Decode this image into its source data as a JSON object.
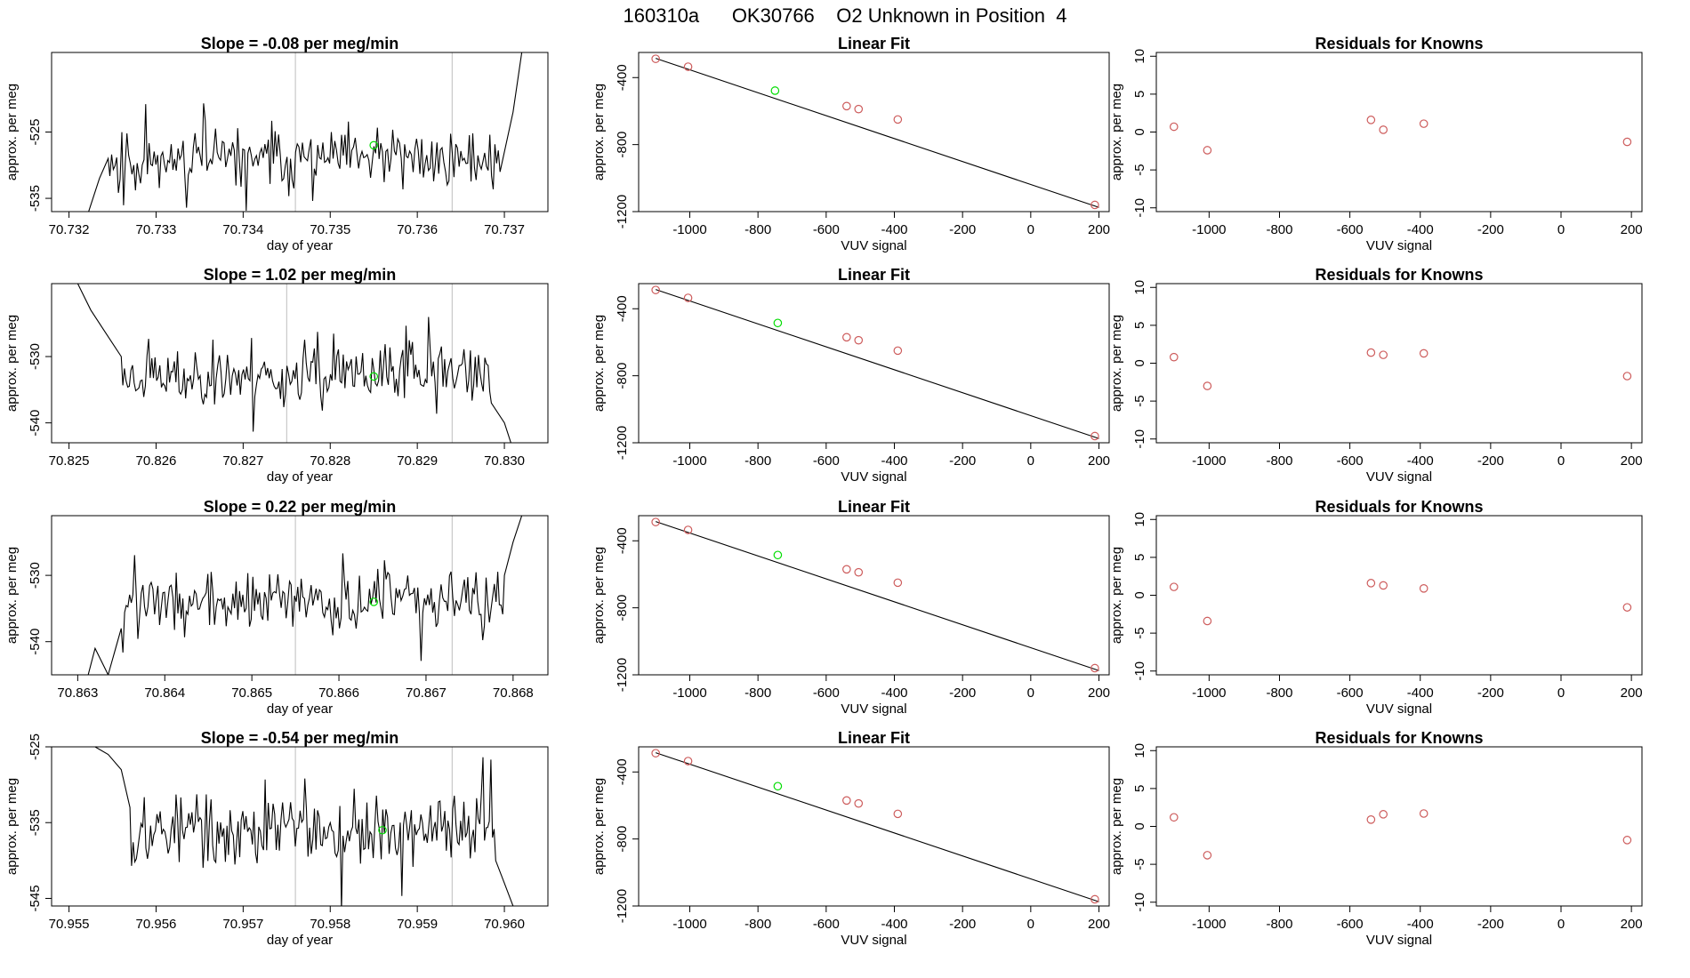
{
  "page_title": "160310a      OK30766    O2 Unknown in Position  4",
  "colors": {
    "trace": "#000000",
    "knowns": "#cd5c5c",
    "unknown": "#00dd00",
    "vline": "#bebebe",
    "fitline": "#000000"
  },
  "fit_knowns": [
    {
      "x": -1100,
      "y": -288
    },
    {
      "x": -1005,
      "y": -335
    },
    {
      "x": -540,
      "y": -570
    },
    {
      "x": -505,
      "y": -588
    },
    {
      "x": -390,
      "y": -650
    },
    {
      "x": 188,
      "y": -1160
    }
  ],
  "resid_x": [
    -1100,
    -1005,
    -540,
    -505,
    -390,
    188
  ],
  "chart_data": [
    {
      "type": "line",
      "panel": "trace",
      "row": 0,
      "title": "Slope =  -0.08  per meg/min",
      "xlabel": "day of year",
      "ylabel": "approx. per meg",
      "xlim": [
        70.7318,
        70.7375
      ],
      "ylim": [
        -537,
        -513
      ],
      "xticks": [
        "70.732",
        "70.733",
        "70.734",
        "70.735",
        "70.736",
        "70.737"
      ],
      "xtick_values": [
        70.732,
        70.733,
        70.734,
        70.735,
        70.736,
        70.737
      ],
      "yticks": [
        "-535",
        "-525"
      ],
      "ytick_values": [
        -535,
        -525
      ],
      "vlines": [
        70.7346,
        70.7364
      ],
      "trace": {
        "x_start": 70.7322,
        "x_end": 70.7372,
        "base": -529,
        "amp": 2.6,
        "seed": 11,
        "start_points": [
          [
            70.7322,
            -538
          ],
          [
            70.73235,
            -532
          ],
          [
            70.73245,
            -529
          ]
        ],
        "end_points": [
          [
            70.73695,
            -531
          ],
          [
            70.7371,
            -522
          ],
          [
            70.7372,
            -513
          ]
        ]
      },
      "unknown_point": {
        "x": 70.7355,
        "y": -527
      }
    },
    {
      "type": "scatter",
      "panel": "fit",
      "row": 0,
      "title": "Linear Fit",
      "xlabel": "VUV signal",
      "ylabel": "approx. per meg",
      "xlim": [
        -1150,
        230
      ],
      "ylim": [
        -1200,
        -250
      ],
      "xticks": [
        "-1000",
        "-800",
        "-600",
        "-400",
        "-200",
        "0",
        "200"
      ],
      "xtick_values": [
        -1000,
        -800,
        -600,
        -400,
        -200,
        0,
        200
      ],
      "yticks": [
        "-1200",
        "-800",
        "-400"
      ],
      "ytick_values": [
        -1200,
        -800,
        -400
      ],
      "fit_line": {
        "x": [
          -1100,
          200
        ],
        "y": [
          -285,
          -1175
        ]
      },
      "unknown_point": {
        "x": -750,
        "y": -478
      }
    },
    {
      "type": "scatter",
      "panel": "resid",
      "row": 0,
      "title": "Residuals for Knowns",
      "xlabel": "VUV signal",
      "ylabel": "approx. per meg",
      "xlim": [
        -1150,
        230
      ],
      "ylim": [
        -10.5,
        10.5
      ],
      "xticks": [
        "-1000",
        "-800",
        "-600",
        "-400",
        "-200",
        "0",
        "200"
      ],
      "xtick_values": [
        -1000,
        -800,
        -600,
        -400,
        -200,
        0,
        200
      ],
      "yticks": [
        "-10",
        "-5",
        "0",
        "5",
        "10"
      ],
      "ytick_values": [
        -10,
        -5,
        0,
        5,
        10
      ],
      "y": [
        0.7,
        -2.4,
        1.6,
        0.3,
        1.1,
        -1.3
      ]
    },
    {
      "type": "line",
      "panel": "trace",
      "row": 1,
      "title": "Slope =  1.02  per meg/min",
      "xlabel": "day of year",
      "ylabel": "approx. per meg",
      "xlim": [
        70.8248,
        70.8305
      ],
      "ylim": [
        -543,
        -519
      ],
      "xticks": [
        "70.825",
        "70.826",
        "70.827",
        "70.828",
        "70.829",
        "70.830"
      ],
      "xtick_values": [
        70.825,
        70.826,
        70.827,
        70.828,
        70.829,
        70.83
      ],
      "yticks": [
        "-540",
        "-530"
      ],
      "ytick_values": [
        -540,
        -530
      ],
      "vlines": [
        70.8275,
        70.8294
      ],
      "trace": {
        "x_start": 70.8251,
        "x_end": 70.8301,
        "base": -533,
        "amp": 2.6,
        "seed": 23,
        "start_points": [
          [
            70.8251,
            -519
          ],
          [
            70.82525,
            -523
          ],
          [
            70.8254,
            -526
          ],
          [
            70.8256,
            -530
          ]
        ],
        "end_points": [
          [
            70.82985,
            -537
          ],
          [
            70.83,
            -540
          ],
          [
            70.8301,
            -544
          ]
        ]
      },
      "unknown_point": {
        "x": 70.8285,
        "y": -533
      }
    },
    {
      "type": "scatter",
      "panel": "fit",
      "row": 1,
      "title": "Linear Fit",
      "xlabel": "VUV signal",
      "ylabel": "approx. per meg",
      "xlim": [
        -1150,
        230
      ],
      "ylim": [
        -1200,
        -250
      ],
      "xticks": [
        "-1000",
        "-800",
        "-600",
        "-400",
        "-200",
        "0",
        "200"
      ],
      "xtick_values": [
        -1000,
        -800,
        -600,
        -400,
        -200,
        0,
        200
      ],
      "yticks": [
        "-1200",
        "-800",
        "-400"
      ],
      "ytick_values": [
        -1200,
        -800,
        -400
      ],
      "fit_line": {
        "x": [
          -1100,
          200
        ],
        "y": [
          -285,
          -1175
        ]
      },
      "unknown_point": {
        "x": -742,
        "y": -485
      }
    },
    {
      "type": "scatter",
      "panel": "resid",
      "row": 1,
      "title": "Residuals for Knowns",
      "xlabel": "VUV signal",
      "ylabel": "approx. per meg",
      "xlim": [
        -1150,
        230
      ],
      "ylim": [
        -10.5,
        10.5
      ],
      "xticks": [
        "-1000",
        "-800",
        "-600",
        "-400",
        "-200",
        "0",
        "200"
      ],
      "xtick_values": [
        -1000,
        -800,
        -600,
        -400,
        -200,
        0,
        200
      ],
      "yticks": [
        "-10",
        "-5",
        "0",
        "5",
        "10"
      ],
      "ytick_values": [
        -10,
        -5,
        0,
        5,
        10
      ],
      "y": [
        0.8,
        -3.0,
        1.4,
        1.1,
        1.3,
        -1.7
      ]
    },
    {
      "type": "line",
      "panel": "trace",
      "row": 2,
      "title": "Slope =  0.22  per meg/min",
      "xlabel": "day of year",
      "ylabel": "approx. per meg",
      "xlim": [
        70.8627,
        70.8684
      ],
      "ylim": [
        -545,
        -521
      ],
      "xticks": [
        "70.863",
        "70.864",
        "70.865",
        "70.866",
        "70.867",
        "70.868"
      ],
      "xtick_values": [
        70.863,
        70.864,
        70.865,
        70.866,
        70.867,
        70.868
      ],
      "yticks": [
        "-540",
        "-530"
      ],
      "ytick_values": [
        -540,
        -530
      ],
      "vlines": [
        70.8655,
        70.8673
      ],
      "trace": {
        "x_start": 70.8631,
        "x_end": 70.8681,
        "base": -534,
        "amp": 2.6,
        "seed": 37,
        "start_points": [
          [
            70.8631,
            -546
          ],
          [
            70.8632,
            -541
          ],
          [
            70.86335,
            -545
          ],
          [
            70.8635,
            -538
          ]
        ],
        "end_points": [
          [
            70.8679,
            -530
          ],
          [
            70.868,
            -525
          ],
          [
            70.8681,
            -521
          ]
        ]
      },
      "unknown_point": {
        "x": 70.8664,
        "y": -534
      }
    },
    {
      "type": "scatter",
      "panel": "fit",
      "row": 2,
      "title": "Linear Fit",
      "xlabel": "VUV signal",
      "ylabel": "approx. per meg",
      "xlim": [
        -1150,
        230
      ],
      "ylim": [
        -1200,
        -250
      ],
      "xticks": [
        "-1000",
        "-800",
        "-600",
        "-400",
        "-200",
        "0",
        "200"
      ],
      "xtick_values": [
        -1000,
        -800,
        -600,
        -400,
        -200,
        0,
        200
      ],
      "yticks": [
        "-1200",
        "-800",
        "-400"
      ],
      "ytick_values": [
        -1200,
        -800,
        -400
      ],
      "fit_line": {
        "x": [
          -1100,
          200
        ],
        "y": [
          -285,
          -1175
        ]
      },
      "unknown_point": {
        "x": -742,
        "y": -485
      }
    },
    {
      "type": "scatter",
      "panel": "resid",
      "row": 2,
      "title": "Residuals for Knowns",
      "xlabel": "VUV signal",
      "ylabel": "approx. per meg",
      "xlim": [
        -1150,
        230
      ],
      "ylim": [
        -10.5,
        10.5
      ],
      "xticks": [
        "-1000",
        "-800",
        "-600",
        "-400",
        "-200",
        "0",
        "200"
      ],
      "xtick_values": [
        -1000,
        -800,
        -600,
        -400,
        -200,
        0,
        200
      ],
      "yticks": [
        "-10",
        "-5",
        "0",
        "5",
        "10"
      ],
      "ytick_values": [
        -10,
        -5,
        0,
        5,
        10
      ],
      "y": [
        1.1,
        -3.4,
        1.6,
        1.3,
        0.9,
        -1.6
      ]
    },
    {
      "type": "line",
      "panel": "trace",
      "row": 3,
      "title": "Slope =  -0.54  per meg/min",
      "xlabel": "day of year",
      "ylabel": "approx. per meg",
      "xlim": [
        70.9548,
        70.9605
      ],
      "ylim": [
        -546,
        -525
      ],
      "xticks": [
        "70.955",
        "70.956",
        "70.957",
        "70.958",
        "70.959",
        "70.960"
      ],
      "xtick_values": [
        70.955,
        70.956,
        70.957,
        70.958,
        70.959,
        70.96
      ],
      "yticks": [
        "-545",
        "-535",
        "-525"
      ],
      "ytick_values": [
        -545,
        -535,
        -525
      ],
      "vlines": [
        70.9576,
        70.9594
      ],
      "trace": {
        "x_start": 70.9553,
        "x_end": 70.9601,
        "base": -536,
        "amp": 2.8,
        "seed": 53,
        "start_points": [
          [
            70.9553,
            -525
          ],
          [
            70.95545,
            -526
          ],
          [
            70.9556,
            -528
          ],
          [
            70.9557,
            -533
          ]
        ],
        "end_points": [
          [
            70.9599,
            -540
          ],
          [
            70.96,
            -543
          ],
          [
            70.9601,
            -546
          ]
        ]
      },
      "unknown_point": {
        "x": 70.9586,
        "y": -536
      }
    },
    {
      "type": "scatter",
      "panel": "fit",
      "row": 3,
      "title": "Linear Fit",
      "xlabel": "VUV signal",
      "ylabel": "approx. per meg",
      "xlim": [
        -1150,
        230
      ],
      "ylim": [
        -1200,
        -250
      ],
      "xticks": [
        "-1000",
        "-800",
        "-600",
        "-400",
        "-200",
        "0",
        "200"
      ],
      "xtick_values": [
        -1000,
        -800,
        -600,
        -400,
        -200,
        0,
        200
      ],
      "yticks": [
        "-1200",
        "-800",
        "-400"
      ],
      "ytick_values": [
        -1200,
        -800,
        -400
      ],
      "fit_line": {
        "x": [
          -1100,
          200
        ],
        "y": [
          -285,
          -1175
        ]
      },
      "unknown_point": {
        "x": -742,
        "y": -485
      }
    },
    {
      "type": "scatter",
      "panel": "resid",
      "row": 3,
      "title": "Residuals for Knowns",
      "xlabel": "VUV signal",
      "ylabel": "approx. per meg",
      "xlim": [
        -1150,
        230
      ],
      "ylim": [
        -10.5,
        10.5
      ],
      "xticks": [
        "-1000",
        "-800",
        "-600",
        "-400",
        "-200",
        "0",
        "200"
      ],
      "xtick_values": [
        -1000,
        -800,
        -600,
        -400,
        -200,
        0,
        200
      ],
      "yticks": [
        "-10",
        "-5",
        "0",
        "5",
        "10"
      ],
      "ytick_values": [
        -10,
        -5,
        0,
        5,
        10
      ],
      "y": [
        1.2,
        -3.8,
        0.9,
        1.6,
        1.7,
        -1.8
      ]
    }
  ]
}
